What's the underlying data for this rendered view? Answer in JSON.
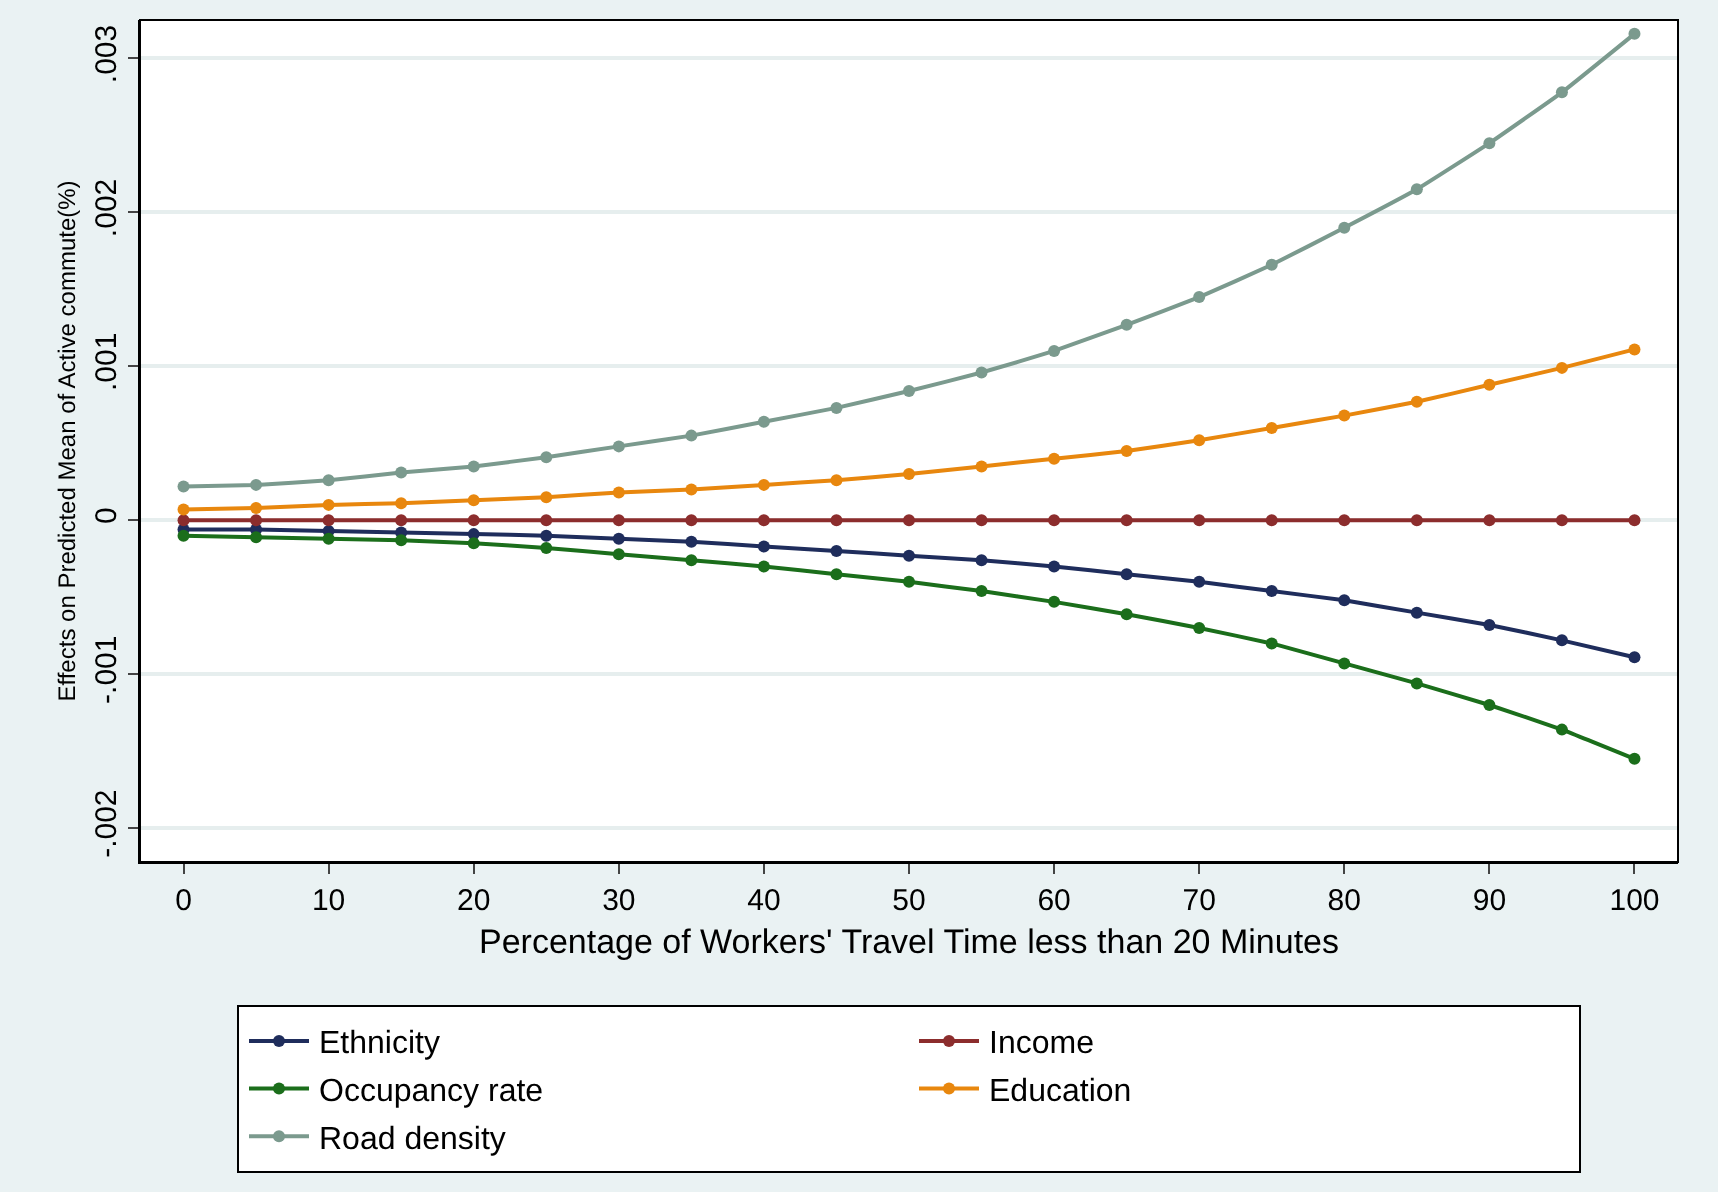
{
  "chart_data": {
    "type": "line",
    "xlabel": "Percentage of Workers' Travel Time less than 20 Minutes",
    "ylabel": "Effects on Predicted Mean of Active commute(%)",
    "x": [
      0,
      5,
      10,
      15,
      20,
      25,
      30,
      35,
      40,
      45,
      50,
      55,
      60,
      65,
      70,
      75,
      80,
      85,
      90,
      95,
      100
    ],
    "series": [
      {
        "name": "Ethnicity",
        "color": "#1f2d5c",
        "values": [
          -6e-05,
          -6e-05,
          -7e-05,
          -8e-05,
          -9e-05,
          -0.0001,
          -0.00012,
          -0.00014,
          -0.00017,
          -0.0002,
          -0.00023,
          -0.00026,
          -0.0003,
          -0.00035,
          -0.0004,
          -0.00046,
          -0.00052,
          -0.0006,
          -0.00068,
          -0.00078,
          -0.00089
        ]
      },
      {
        "name": "Income",
        "color": "#8c2d2d",
        "values": [
          0,
          0,
          0,
          0,
          0,
          0,
          0,
          0,
          0,
          0,
          0,
          0,
          0,
          0,
          0,
          0,
          0,
          0,
          0,
          0,
          0
        ]
      },
      {
        "name": "Occupancy rate",
        "color": "#1b6e1b",
        "values": [
          -0.0001,
          -0.00011,
          -0.00012,
          -0.00013,
          -0.00015,
          -0.00018,
          -0.00022,
          -0.00026,
          -0.0003,
          -0.00035,
          -0.0004,
          -0.00046,
          -0.00053,
          -0.00061,
          -0.0007,
          -0.0008,
          -0.00093,
          -0.00106,
          -0.0012,
          -0.00136,
          -0.00155
        ]
      },
      {
        "name": "Education",
        "color": "#e8870e",
        "values": [
          7e-05,
          8e-05,
          0.0001,
          0.00011,
          0.00013,
          0.00015,
          0.00018,
          0.0002,
          0.00023,
          0.00026,
          0.0003,
          0.00035,
          0.0004,
          0.00045,
          0.00052,
          0.0006,
          0.00068,
          0.00077,
          0.00088,
          0.00099,
          0.00111
        ]
      },
      {
        "name": "Road density",
        "color": "#7b9a8e",
        "values": [
          0.00022,
          0.00023,
          0.00026,
          0.00031,
          0.00035,
          0.00041,
          0.00048,
          0.00055,
          0.00064,
          0.00073,
          0.00084,
          0.00096,
          0.0011,
          0.00127,
          0.00145,
          0.00166,
          0.0019,
          0.00215,
          0.00245,
          0.00278,
          0.00316
        ]
      }
    ],
    "xlim": [
      -3,
      103
    ],
    "xticks": [
      0,
      10,
      20,
      30,
      40,
      50,
      60,
      70,
      80,
      90,
      100
    ],
    "ylim": [
      -0.00222,
      0.00325
    ],
    "yticks": [
      {
        "value": -0.002,
        "label": "-.002"
      },
      {
        "value": -0.001,
        "label": "-.001"
      },
      {
        "value": 0,
        "label": "0"
      },
      {
        "value": 0.001,
        "label": ".001"
      },
      {
        "value": 0.002,
        "label": ".002"
      },
      {
        "value": 0.003,
        "label": ".003"
      }
    ],
    "grid": "y",
    "legend": "bottom",
    "marker": "circle",
    "line_style": "solid"
  }
}
